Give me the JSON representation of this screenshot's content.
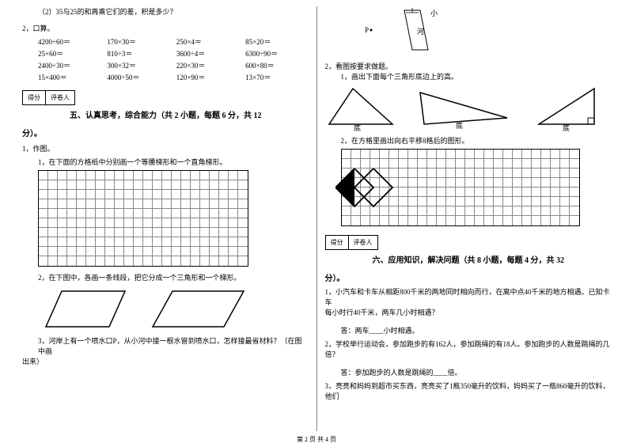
{
  "left": {
    "q1_2": "（2）35与25的和再乘它们的差，积是多少？",
    "q2_label": "2，口算。",
    "calc": [
      "4200÷60＝",
      "170×30＝",
      "250×4＝",
      "85×20＝",
      "25×60＝",
      "810÷3＝",
      "3600÷4＝",
      "6300÷90＝",
      "2400÷30＝",
      "300×32＝",
      "220×30＝",
      "600×80＝",
      "15×400＝",
      "4000÷50＝",
      "120×90＝",
      "13×70＝"
    ],
    "score_l": "得分",
    "score_r": "评卷人",
    "sec5": "五、认真思考，综合能力（共 2 小题，每题 6 分，共 12",
    "fen": "分）。",
    "p1": "1，作图。",
    "p1_1": "1，在下面的方格纸中分别画一个等腰梯形和一个直角梯形。",
    "p1_2": "2，在下图中，各画一条线段，把它分成一个三角形和一个梯形。",
    "p1_3": "3，河岸上有一个喷水口P，从小河中接一根水管到喷水口，怎样接最省材料？（在图中画",
    "p1_3b": "出来）",
    "grid1": {
      "rows": 10,
      "cols": 22,
      "cell": 12
    }
  },
  "right": {
    "river_labels": {
      "p": "P",
      "xiao": "小",
      "he": "河"
    },
    "q2": "2，看图按要求做题。",
    "q2_1": "1，画出下面每个三角形底边上的高。",
    "di": "底",
    "q2_2": "2，在方格里画出向右平移8格后的图形。",
    "grid2": {
      "rows": 8,
      "cols": 25,
      "cell": 12
    },
    "score_l": "得分",
    "score_r": "评卷人",
    "sec6": "六、应用知识，解决问题（共 8 小题，每题 4 分，共 32",
    "fen": "分）。",
    "w1a": "1，小汽车和卡车从相距800千米的两地同时相向而行，在离中点40千米的地方相遇。已知卡车",
    "w1b": "每小时行40千米，两车几小时相遇？",
    "w1ans": "答：两车____小时相遇。",
    "w2": "2，学校举行运动会，参加跑步的有162人，参加跳绳的有18人。参加跑步的人数是跳绳的几倍？",
    "w2ans": "答：参加跑步的人数是跳绳的____倍。",
    "w3": "3，亮亮和妈妈到超市买东西，亮亮买了1瓶350毫升的饮料，妈妈买了一瓶860毫升的饮料，他们"
  },
  "footer": "第 2 页  共 4 页",
  "colors": {
    "line": "#000",
    "grid": "#888"
  }
}
